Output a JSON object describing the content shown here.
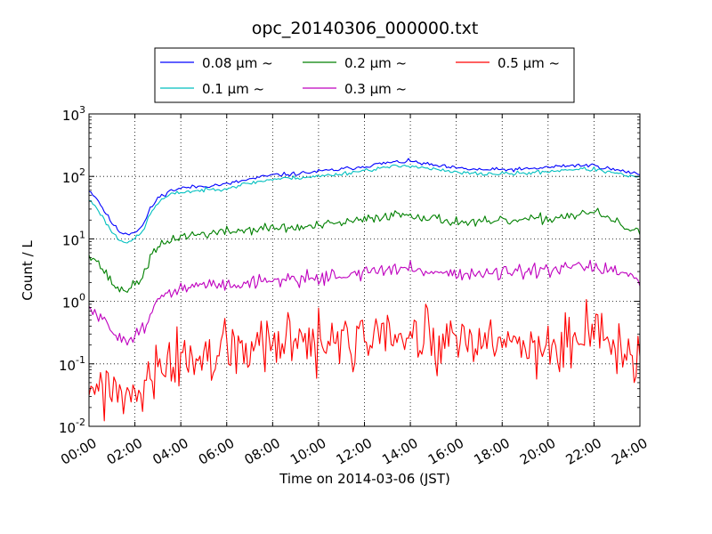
{
  "chart_data": {
    "type": "line",
    "title": "opc_20140306_000000.txt",
    "xlabel": "Time on 2014-03-06 (JST)",
    "ylabel": "Count / L",
    "y_scale": "log",
    "ylim": [
      0.01,
      1000
    ],
    "xlim": [
      "00:00",
      "24:00"
    ],
    "x_ticks": [
      "00:00",
      "02:00",
      "04:00",
      "06:00",
      "08:00",
      "10:00",
      "12:00",
      "14:00",
      "16:00",
      "18:00",
      "20:00",
      "22:00",
      "24:00"
    ],
    "y_ticks": [
      {
        "base": "10",
        "exp": "-2"
      },
      {
        "base": "10",
        "exp": "-1"
      },
      {
        "base": "10",
        "exp": "0"
      },
      {
        "base": "10",
        "exp": "1"
      },
      {
        "base": "10",
        "exp": "2"
      },
      {
        "base": "10",
        "exp": "3"
      }
    ],
    "grid": true,
    "legend_position": "top",
    "series": [
      {
        "name": "0.08 μm ~",
        "color": "#0000ff",
        "noise": 0.02,
        "seed": 11,
        "points": [
          [
            "00:00",
            60
          ],
          [
            "00:20",
            45
          ],
          [
            "00:40",
            28
          ],
          [
            "01:00",
            18
          ],
          [
            "01:20",
            13
          ],
          [
            "01:40",
            12
          ],
          [
            "02:00",
            13
          ],
          [
            "02:20",
            16
          ],
          [
            "02:40",
            30
          ],
          [
            "03:00",
            45
          ],
          [
            "03:30",
            58
          ],
          [
            "04:00",
            65
          ],
          [
            "05:00",
            70
          ],
          [
            "06:00",
            75
          ],
          [
            "07:00",
            90
          ],
          [
            "08:00",
            105
          ],
          [
            "09:00",
            110
          ],
          [
            "10:00",
            120
          ],
          [
            "11:00",
            130
          ],
          [
            "12:00",
            145
          ],
          [
            "13:00",
            165
          ],
          [
            "14:00",
            175
          ],
          [
            "15:00",
            150
          ],
          [
            "16:00",
            135
          ],
          [
            "17:00",
            128
          ],
          [
            "18:00",
            128
          ],
          [
            "19:00",
            130
          ],
          [
            "20:00",
            140
          ],
          [
            "21:00",
            150
          ],
          [
            "22:00",
            150
          ],
          [
            "23:00",
            125
          ],
          [
            "24:00",
            110
          ]
        ]
      },
      {
        "name": "0.1 μm ~",
        "color": "#00bfbf",
        "noise": 0.02,
        "seed": 23,
        "points": [
          [
            "00:00",
            42
          ],
          [
            "00:20",
            32
          ],
          [
            "00:40",
            20
          ],
          [
            "01:00",
            13
          ],
          [
            "01:20",
            9.5
          ],
          [
            "01:40",
            9
          ],
          [
            "02:00",
            10
          ],
          [
            "02:20",
            13
          ],
          [
            "02:40",
            25
          ],
          [
            "03:00",
            38
          ],
          [
            "03:30",
            50
          ],
          [
            "04:00",
            56
          ],
          [
            "05:00",
            60
          ],
          [
            "06:00",
            65
          ],
          [
            "07:00",
            78
          ],
          [
            "08:00",
            90
          ],
          [
            "09:00",
            95
          ],
          [
            "10:00",
            100
          ],
          [
            "11:00",
            110
          ],
          [
            "12:00",
            125
          ],
          [
            "13:00",
            140
          ],
          [
            "14:00",
            150
          ],
          [
            "15:00",
            130
          ],
          [
            "16:00",
            115
          ],
          [
            "17:00",
            110
          ],
          [
            "18:00",
            110
          ],
          [
            "19:00",
            112
          ],
          [
            "20:00",
            120
          ],
          [
            "21:00",
            130
          ],
          [
            "22:00",
            130
          ],
          [
            "23:00",
            110
          ],
          [
            "24:00",
            95
          ]
        ]
      },
      {
        "name": "0.2 μm ~",
        "color": "#008000",
        "noise": 0.05,
        "seed": 37,
        "points": [
          [
            "00:00",
            6
          ],
          [
            "00:20",
            4.5
          ],
          [
            "00:40",
            3
          ],
          [
            "01:00",
            2
          ],
          [
            "01:20",
            1.5
          ],
          [
            "01:40",
            1.6
          ],
          [
            "02:00",
            1.8
          ],
          [
            "02:20",
            2.5
          ],
          [
            "02:40",
            5
          ],
          [
            "03:00",
            7
          ],
          [
            "03:30",
            9.5
          ],
          [
            "04:00",
            11
          ],
          [
            "05:00",
            12
          ],
          [
            "06:00",
            13
          ],
          [
            "07:00",
            14
          ],
          [
            "08:00",
            15
          ],
          [
            "09:00",
            15
          ],
          [
            "10:00",
            16
          ],
          [
            "11:00",
            18
          ],
          [
            "12:00",
            20
          ],
          [
            "13:00",
            24
          ],
          [
            "14:00",
            25
          ],
          [
            "15:00",
            21
          ],
          [
            "16:00",
            19
          ],
          [
            "17:00",
            18
          ],
          [
            "18:00",
            19
          ],
          [
            "19:00",
            20
          ],
          [
            "20:00",
            21
          ],
          [
            "21:00",
            24
          ],
          [
            "22:00",
            27
          ],
          [
            "23:00",
            18
          ],
          [
            "24:00",
            12
          ]
        ]
      },
      {
        "name": "0.3 μm ~",
        "color": "#bf00bf",
        "noise": 0.07,
        "seed": 51,
        "points": [
          [
            "00:00",
            0.75
          ],
          [
            "00:20",
            0.6
          ],
          [
            "00:40",
            0.45
          ],
          [
            "01:00",
            0.35
          ],
          [
            "01:20",
            0.27
          ],
          [
            "01:40",
            0.25
          ],
          [
            "02:00",
            0.28
          ],
          [
            "02:20",
            0.35
          ],
          [
            "02:40",
            0.7
          ],
          [
            "03:00",
            1.0
          ],
          [
            "03:30",
            1.3
          ],
          [
            "04:00",
            1.6
          ],
          [
            "05:00",
            1.8
          ],
          [
            "06:00",
            1.9
          ],
          [
            "07:00",
            2.0
          ],
          [
            "08:00",
            2.2
          ],
          [
            "09:00",
            2.3
          ],
          [
            "10:00",
            2.4
          ],
          [
            "11:00",
            2.6
          ],
          [
            "12:00",
            2.9
          ],
          [
            "13:00",
            3.2
          ],
          [
            "14:00",
            3.3
          ],
          [
            "15:00",
            3.0
          ],
          [
            "16:00",
            2.8
          ],
          [
            "17:00",
            2.7
          ],
          [
            "18:00",
            2.8
          ],
          [
            "19:00",
            2.9
          ],
          [
            "20:00",
            3.0
          ],
          [
            "21:00",
            3.4
          ],
          [
            "22:00",
            3.6
          ],
          [
            "23:00",
            3.0
          ],
          [
            "24:00",
            1.9
          ]
        ]
      },
      {
        "name": "0.5 μm ~",
        "color": "#ff0000",
        "noise": 0.3,
        "seed": 77,
        "points": [
          [
            "00:00",
            0.05
          ],
          [
            "00:30",
            0.04
          ],
          [
            "01:00",
            0.035
          ],
          [
            "01:30",
            0.025
          ],
          [
            "02:00",
            0.025
          ],
          [
            "02:30",
            0.04
          ],
          [
            "03:00",
            0.07
          ],
          [
            "03:30",
            0.09
          ],
          [
            "04:00",
            0.11
          ],
          [
            "05:00",
            0.13
          ],
          [
            "06:00",
            0.15
          ],
          [
            "07:00",
            0.18
          ],
          [
            "08:00",
            0.2
          ],
          [
            "09:00",
            0.21
          ],
          [
            "10:00",
            0.2
          ],
          [
            "11:00",
            0.22
          ],
          [
            "12:00",
            0.23
          ],
          [
            "13:00",
            0.25
          ],
          [
            "14:00",
            0.24
          ],
          [
            "15:00",
            0.21
          ],
          [
            "16:00",
            0.2
          ],
          [
            "17:00",
            0.2
          ],
          [
            "18:00",
            0.19
          ],
          [
            "19:00",
            0.2
          ],
          [
            "20:00",
            0.2
          ],
          [
            "21:00",
            0.22
          ],
          [
            "22:00",
            0.25
          ],
          [
            "23:00",
            0.17
          ],
          [
            "24:00",
            0.13
          ]
        ]
      }
    ]
  }
}
